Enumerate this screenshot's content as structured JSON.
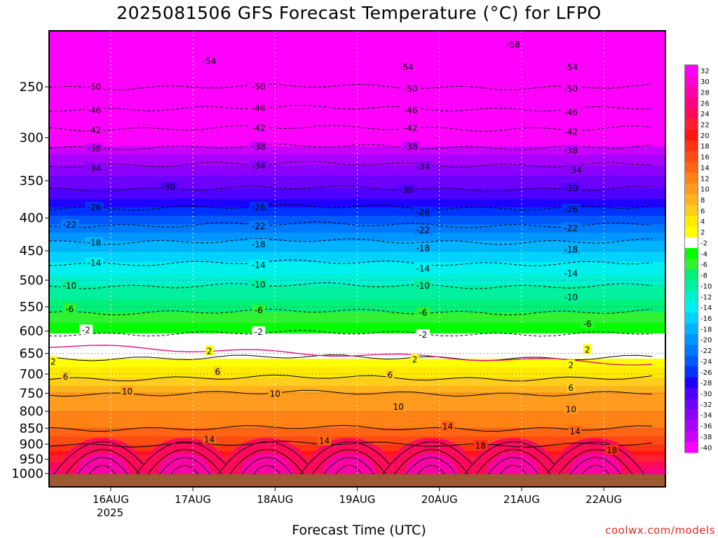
{
  "chart_data": {
    "type": "heatmap",
    "title": "2025081506 GFS Forecast Temperature (°C) for LFPO",
    "xlabel": "Forecast Time (UTC)",
    "ylabel": "",
    "y_scale": "log (pressure)",
    "y_ticks": [
      250,
      300,
      350,
      400,
      450,
      500,
      550,
      600,
      650,
      700,
      750,
      800,
      850,
      900,
      950,
      1000
    ],
    "ylim": [
      1000,
      200
    ],
    "x_ticks": [
      "16AUG",
      "17AUG",
      "18AUG",
      "19AUG",
      "20AUG",
      "21AUG",
      "22AUG"
    ],
    "x_year_label": "2025",
    "xlim_days": [
      15.25,
      22.75
    ],
    "colorbar": {
      "levels": [
        32,
        30,
        28,
        26,
        24,
        22,
        20,
        18,
        16,
        14,
        12,
        10,
        8,
        6,
        4,
        2,
        -2,
        -4,
        -6,
        -8,
        -10,
        -12,
        -14,
        -16,
        -18,
        -20,
        -22,
        -24,
        -26,
        -28,
        -30,
        -32,
        -34,
        -36,
        -38,
        -40
      ],
      "colors": [
        "#ff00ff",
        "#ff00d2",
        "#ff00a8",
        "#ff0082",
        "#ff0a5a",
        "#ff1e32",
        "#ff1414",
        "#ff3214",
        "#ff4b14",
        "#ff6414",
        "#ff8214",
        "#ff9b1e",
        "#ffb41e",
        "#ffcd1e",
        "#ffeb00",
        "#ffff00",
        "#ffffff",
        "#00ff00",
        "#32f032",
        "#00f078",
        "#00f0a0",
        "#00f0d2",
        "#00f0f0",
        "#00d2ff",
        "#00b4ff",
        "#0096ff",
        "#0078ff",
        "#005aff",
        "#0032ff",
        "#1e00ff",
        "#5000ff",
        "#6e00ff",
        "#8c00ff",
        "#aa00ff",
        "#c800ff",
        "#ff00ff"
      ]
    },
    "isotherm_profile": [
      {
        "p": 250,
        "t": -50
      },
      {
        "p": 270,
        "t": -46
      },
      {
        "p": 290,
        "t": -42
      },
      {
        "p": 310,
        "t": -38
      },
      {
        "p": 330,
        "t": -34
      },
      {
        "p": 360,
        "t": -30
      },
      {
        "p": 385,
        "t": -26
      },
      {
        "p": 410,
        "t": -22
      },
      {
        "p": 435,
        "t": -18
      },
      {
        "p": 470,
        "t": -14
      },
      {
        "p": 510,
        "t": -10
      },
      {
        "p": 560,
        "t": -6
      },
      {
        "p": 605,
        "t": -2
      },
      {
        "p": 660,
        "t": 2
      },
      {
        "p": 710,
        "t": 6
      },
      {
        "p": 750,
        "t": 10
      },
      {
        "p": 850,
        "t": 14
      },
      {
        "p": 900,
        "t": 18
      }
    ],
    "contour_labels": [
      {
        "x": 15.8,
        "p": 250,
        "t": -50
      },
      {
        "x": 17.8,
        "p": 250,
        "t": -50
      },
      {
        "x": 19.65,
        "p": 252,
        "t": -50
      },
      {
        "x": 21.6,
        "p": 252,
        "t": -50
      },
      {
        "x": 17.2,
        "p": 228,
        "t": -54
      },
      {
        "x": 19.6,
        "p": 233,
        "t": -54
      },
      {
        "x": 21.6,
        "p": 233,
        "t": -54
      },
      {
        "x": 20.9,
        "p": 215,
        "t": -58
      },
      {
        "x": 15.8,
        "p": 272,
        "t": -46
      },
      {
        "x": 17.8,
        "p": 270,
        "t": -46
      },
      {
        "x": 19.65,
        "p": 272,
        "t": -46
      },
      {
        "x": 21.6,
        "p": 274,
        "t": -46
      },
      {
        "x": 15.8,
        "p": 292,
        "t": -42
      },
      {
        "x": 17.8,
        "p": 290,
        "t": -42
      },
      {
        "x": 19.65,
        "p": 290,
        "t": -42
      },
      {
        "x": 21.6,
        "p": 294,
        "t": -42
      },
      {
        "x": 15.8,
        "p": 312,
        "t": -38
      },
      {
        "x": 17.8,
        "p": 310,
        "t": -38
      },
      {
        "x": 19.65,
        "p": 310,
        "t": -38
      },
      {
        "x": 21.6,
        "p": 314,
        "t": -38
      },
      {
        "x": 15.8,
        "p": 335,
        "t": -34
      },
      {
        "x": 17.8,
        "p": 332,
        "t": -34
      },
      {
        "x": 19.8,
        "p": 333,
        "t": -34
      },
      {
        "x": 21.65,
        "p": 337,
        "t": -34
      },
      {
        "x": 16.7,
        "p": 358,
        "t": -30
      },
      {
        "x": 19.6,
        "p": 362,
        "t": -30
      },
      {
        "x": 21.6,
        "p": 360,
        "t": -30
      },
      {
        "x": 15.8,
        "p": 385,
        "t": -26
      },
      {
        "x": 17.8,
        "p": 385,
        "t": -26
      },
      {
        "x": 19.8,
        "p": 392,
        "t": -26
      },
      {
        "x": 21.6,
        "p": 388,
        "t": -26
      },
      {
        "x": 15.5,
        "p": 410,
        "t": -22
      },
      {
        "x": 17.8,
        "p": 412,
        "t": -22
      },
      {
        "x": 19.8,
        "p": 418,
        "t": -22
      },
      {
        "x": 21.6,
        "p": 415,
        "t": -22
      },
      {
        "x": 15.8,
        "p": 437,
        "t": -18
      },
      {
        "x": 17.8,
        "p": 440,
        "t": -18
      },
      {
        "x": 19.8,
        "p": 446,
        "t": -18
      },
      {
        "x": 21.6,
        "p": 448,
        "t": -18
      },
      {
        "x": 15.8,
        "p": 470,
        "t": -14
      },
      {
        "x": 17.8,
        "p": 474,
        "t": -14
      },
      {
        "x": 19.8,
        "p": 480,
        "t": -14
      },
      {
        "x": 21.6,
        "p": 488,
        "t": -14
      },
      {
        "x": 15.5,
        "p": 510,
        "t": -10
      },
      {
        "x": 17.8,
        "p": 508,
        "t": -10
      },
      {
        "x": 19.8,
        "p": 510,
        "t": -10
      },
      {
        "x": 21.6,
        "p": 532,
        "t": -10
      },
      {
        "x": 15.5,
        "p": 555,
        "t": -6
      },
      {
        "x": 17.8,
        "p": 557,
        "t": -6
      },
      {
        "x": 19.8,
        "p": 562,
        "t": -6
      },
      {
        "x": 21.8,
        "p": 585,
        "t": -6
      },
      {
        "x": 15.7,
        "p": 598,
        "t": -2
      },
      {
        "x": 17.8,
        "p": 602,
        "t": -2
      },
      {
        "x": 19.8,
        "p": 608,
        "t": -2
      },
      {
        "x": 15.3,
        "p": 670,
        "t": 2
      },
      {
        "x": 17.2,
        "p": 645,
        "t": 2
      },
      {
        "x": 19.7,
        "p": 665,
        "t": 2
      },
      {
        "x": 21.8,
        "p": 642,
        "t": 2
      },
      {
        "x": 21.6,
        "p": 678,
        "t": 2
      },
      {
        "x": 15.45,
        "p": 707,
        "t": 6
      },
      {
        "x": 17.3,
        "p": 695,
        "t": 6
      },
      {
        "x": 19.4,
        "p": 703,
        "t": 6
      },
      {
        "x": 21.6,
        "p": 736,
        "t": 6
      },
      {
        "x": 16.2,
        "p": 745,
        "t": 10
      },
      {
        "x": 18.0,
        "p": 752,
        "t": 10
      },
      {
        "x": 19.5,
        "p": 788,
        "t": 10
      },
      {
        "x": 21.6,
        "p": 795,
        "t": 10
      },
      {
        "x": 17.2,
        "p": 885,
        "t": 14
      },
      {
        "x": 18.6,
        "p": 890,
        "t": 14
      },
      {
        "x": 20.1,
        "p": 845,
        "t": 14
      },
      {
        "x": 21.65,
        "p": 860,
        "t": 14
      },
      {
        "x": 20.5,
        "p": 905,
        "t": 18
      },
      {
        "x": 22.1,
        "p": 920,
        "t": 18
      }
    ]
  },
  "credit": "coolwx.com/models"
}
